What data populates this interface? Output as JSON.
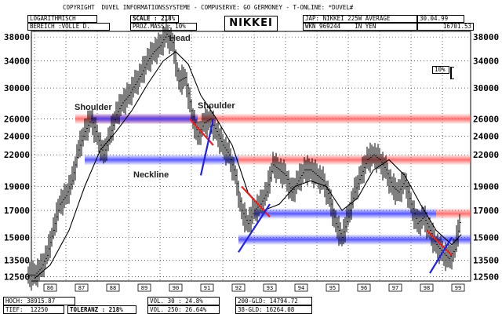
{
  "header": {
    "copyright": "COPYRIGHT  DUVEL INFORMATIONSSYSTEME - COMPUSERVE: GO GERMONEY - T-ONLINE: *DUVEL#",
    "scale_mode": "LOGARITHMISCH",
    "range": "BEREICH :VOLLE D.",
    "scale": "SCALE : 218%",
    "prozmass": "PROZ.MASS.: 10%",
    "title": "NIKKEI",
    "instrument": "JAP: NIKKEI 225W AVERAGE",
    "date": "30.04.99",
    "wkn": "WKN 969244    IN YEN",
    "last_value": "16701.53",
    "pct_marker": "10%"
  },
  "footer": {
    "hoch": "HOCH: 38915.87",
    "tief": "TIEF:  12250",
    "toleranz": "TOLERANZ : 218%",
    "vol30": "VOL. 30 : 24.8%",
    "vol250": "VOL. 250: 26.64%",
    "gld200": "200-GLD: 14794.72",
    "gld38": "38-GLD: 16264.08"
  },
  "annotations": {
    "head": "Head",
    "shoulder_left": "Shoulder",
    "shoulder_right": "Shoulder",
    "neckline": "Neckline"
  },
  "chart_data": {
    "type": "line",
    "title": "NIKKEI",
    "yscale": "log",
    "ylim": [
      12250,
      39000
    ],
    "xlim": [
      1985.6,
      1999.6
    ],
    "y_ticks": [
      12500,
      13500,
      15000,
      17000,
      19000,
      22000,
      24000,
      26000,
      30000,
      34000,
      38000
    ],
    "x_ticks": [
      "86",
      "87",
      "88",
      "89",
      "90",
      "91",
      "92",
      "93",
      "94",
      "95",
      "96",
      "97",
      "98",
      "99"
    ],
    "grid": true,
    "series": [
      {
        "type": "ohlc_range",
        "x": [
          1985.7,
          1985.9,
          1986.1,
          1986.3,
          1986.5,
          1986.7,
          1986.9,
          1987.1,
          1987.3,
          1987.5,
          1987.7,
          1987.9,
          1988.1,
          1988.3,
          1988.5,
          1988.7,
          1988.9,
          1989.1,
          1989.3,
          1989.5,
          1989.7,
          1989.9,
          1990.1,
          1990.3,
          1990.5,
          1990.7,
          1990.9,
          1991.1,
          1991.3,
          1991.5,
          1991.7,
          1991.9,
          1992.1,
          1992.3,
          1992.5,
          1992.7,
          1992.9,
          1993.1,
          1993.3,
          1993.5,
          1993.7,
          1993.9,
          1994.1,
          1994.3,
          1994.5,
          1994.7,
          1994.9,
          1995.1,
          1995.3,
          1995.5,
          1995.7,
          1995.9,
          1996.1,
          1996.3,
          1996.5,
          1996.7,
          1996.9,
          1997.1,
          1997.3,
          1997.5,
          1997.7,
          1997.9,
          1998.1,
          1998.3,
          1998.5,
          1998.7,
          1998.9,
          1999.1,
          1999.3
        ],
        "close": [
          12600,
          13000,
          13800,
          15500,
          17500,
          18200,
          19500,
          22500,
          24500,
          26000,
          24000,
          22000,
          24000,
          26500,
          28000,
          29000,
          30500,
          32000,
          34000,
          35500,
          36500,
          38500,
          37000,
          31000,
          31500,
          27000,
          24000,
          25500,
          26000,
          24500,
          23000,
          22000,
          20000,
          17000,
          16000,
          17000,
          17500,
          18500,
          21000,
          20500,
          20000,
          18500,
          19500,
          20500,
          20500,
          20000,
          19500,
          18000,
          16000,
          15000,
          16500,
          18500,
          20000,
          21500,
          22000,
          21500,
          20500,
          19000,
          18500,
          19500,
          17500,
          16000,
          16500,
          15500,
          14500,
          14000,
          13600,
          14200,
          16700
        ]
      },
      {
        "type": "moving_average",
        "x": [
          1985.7,
          1986.2,
          1986.8,
          1987.3,
          1987.8,
          1988.3,
          1988.8,
          1989.3,
          1989.8,
          1990.2,
          1990.6,
          1991.0,
          1991.5,
          1992.0,
          1992.5,
          1993.0,
          1993.5,
          1994.0,
          1994.5,
          1995.0,
          1995.5,
          1996.0,
          1996.5,
          1997.0,
          1997.5,
          1998.0,
          1998.5,
          1999.0,
          1999.3
        ],
        "values": [
          12400,
          13200,
          15500,
          19000,
          22500,
          24500,
          27000,
          30500,
          34000,
          35500,
          33500,
          29000,
          26000,
          23000,
          18500,
          17000,
          17500,
          19000,
          19500,
          19000,
          17000,
          18000,
          20500,
          21500,
          20000,
          17500,
          15500,
          14500,
          15200
        ]
      }
    ],
    "levels": [
      {
        "value": 26000,
        "color": "red",
        "x_start": 1987.0
      },
      {
        "value": 26000,
        "color": "blue",
        "x_start": 1987.5,
        "x_end": 1990.9
      },
      {
        "value": 21500,
        "color": "blue",
        "x_start": 1987.3,
        "x_end": 1992.2
      },
      {
        "value": 21500,
        "color": "red",
        "x_start": 1992.2
      },
      {
        "value": 16750,
        "color": "blue",
        "x_start": 1992.7,
        "x_end": 1998.5
      },
      {
        "value": 16750,
        "color": "red",
        "x_start": 1998.5
      },
      {
        "value": 14850,
        "color": "blue",
        "x_start": 1992.2
      }
    ]
  }
}
